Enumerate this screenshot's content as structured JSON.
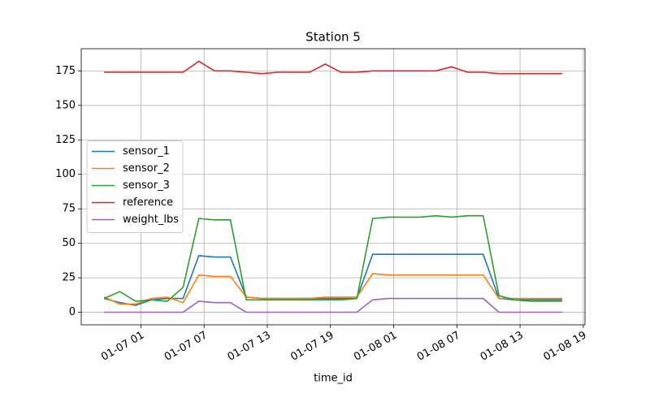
{
  "chart_data": {
    "type": "line",
    "title": "Station 5",
    "xlabel": "time_id",
    "x": [
      "01-06 21:30",
      "01-06 23:00",
      "01-07 00:30",
      "01-07 02:00",
      "01-07 03:30",
      "01-07 05:00",
      "01-07 06:30",
      "01-07 08:00",
      "01-07 09:30",
      "01-07 11:00",
      "01-07 12:30",
      "01-07 14:00",
      "01-07 15:30",
      "01-07 17:00",
      "01-07 18:30",
      "01-07 20:00",
      "01-07 21:30",
      "01-07 23:00",
      "01-08 00:30",
      "01-08 02:00",
      "01-08 03:30",
      "01-08 05:00",
      "01-08 06:30",
      "01-08 08:00",
      "01-08 09:30",
      "01-08 11:00",
      "01-08 12:30",
      "01-08 14:00",
      "01-08 15:30",
      "01-08 17:00"
    ],
    "series": [
      {
        "name": "sensor_1",
        "color": "#1f77b4",
        "values": [
          10,
          7,
          5,
          9,
          10,
          10,
          41,
          40,
          40,
          11,
          10,
          10,
          10,
          10,
          10,
          10,
          10,
          42,
          42,
          42,
          42,
          42,
          42,
          42,
          42,
          10,
          9,
          9,
          9,
          9
        ]
      },
      {
        "name": "sensor_2",
        "color": "#ff7f0e",
        "values": [
          11,
          6,
          6,
          10,
          11,
          7,
          27,
          26,
          26,
          11,
          10,
          10,
          10,
          10,
          11,
          11,
          11,
          28,
          27,
          27,
          27,
          27,
          27,
          27,
          27,
          10,
          10,
          10,
          10,
          10
        ]
      },
      {
        "name": "sensor_3",
        "color": "#2ca02c",
        "values": [
          10,
          15,
          8,
          9,
          8,
          18,
          68,
          67,
          67,
          9,
          9,
          9,
          9,
          9,
          9,
          9,
          10,
          68,
          69,
          69,
          69,
          70,
          69,
          70,
          70,
          12,
          9,
          8,
          8,
          8
        ]
      },
      {
        "name": "reference",
        "color": "#d62728",
        "values": [
          174,
          174,
          174,
          174,
          174,
          174,
          182,
          175,
          175,
          174,
          173,
          174,
          174,
          174,
          180,
          174,
          174,
          175,
          175,
          175,
          175,
          175,
          178,
          174,
          174,
          173,
          173,
          173,
          173,
          173
        ]
      },
      {
        "name": "weight_lbs",
        "color": "#9467bd",
        "values": [
          0,
          0,
          0,
          0,
          0,
          0,
          8,
          7,
          7,
          0,
          0,
          0,
          0,
          0,
          0,
          0,
          0,
          9,
          10,
          10,
          10,
          10,
          10,
          10,
          10,
          0,
          0,
          0,
          0,
          0
        ]
      }
    ],
    "xlim": [
      "01-06 19:20",
      "01-08 19:10"
    ],
    "xticks": [
      {
        "value": "01-07 01:00",
        "label": "01-07 01"
      },
      {
        "value": "01-07 07:00",
        "label": "01-07 07"
      },
      {
        "value": "01-07 13:00",
        "label": "01-07 13"
      },
      {
        "value": "01-07 19:00",
        "label": "01-07 19"
      },
      {
        "value": "01-08 01:00",
        "label": "01-08 01"
      },
      {
        "value": "01-08 07:00",
        "label": "01-08 07"
      },
      {
        "value": "01-08 13:00",
        "label": "01-08 13"
      },
      {
        "value": "01-08 19:00",
        "label": "01-08 19"
      }
    ],
    "ylim": [
      -9.1,
      191.1
    ],
    "yticks": [
      0,
      25,
      50,
      75,
      100,
      125,
      150,
      175
    ],
    "grid": true,
    "legend": "center left"
  }
}
